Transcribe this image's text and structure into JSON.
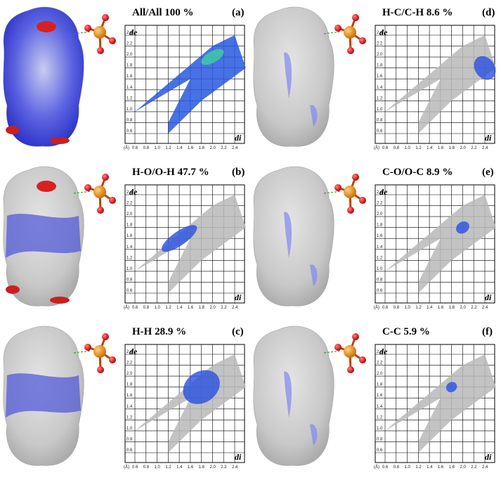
{
  "panels": [
    {
      "title": "All/All  100 %",
      "label": "(a)"
    },
    {
      "title": "H-C/C-H   8.6 %",
      "label": "(d)"
    },
    {
      "title": "H-O/O-H 47.7 %",
      "label": "(b)"
    },
    {
      "title": "C-O/O-C  8.9 %",
      "label": "(e)"
    },
    {
      "title": "H-H  28.9 %",
      "label": "(c)"
    },
    {
      "title": "C-C  5.9 %",
      "label": "(f)"
    }
  ],
  "axes": {
    "y_label": "de",
    "x_label": "di",
    "unit": "(Å)",
    "yticks": [
      "0.6",
      "0.8",
      "1.0",
      "1.2",
      "1.4",
      "1.6",
      "1.8",
      "2.0",
      "2.2",
      "2.4"
    ],
    "xticks": [
      "0.6",
      "0.8",
      "1.0",
      "1.2",
      "1.4",
      "1.6",
      "1.8",
      "2.0",
      "2.2",
      "2.4"
    ]
  }
}
